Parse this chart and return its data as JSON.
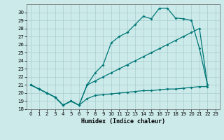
{
  "xlabel": "Humidex (Indice chaleur)",
  "bg_color": "#cceaea",
  "grid_color": "#aacccc",
  "line_color": "#007777",
  "xlim": [
    -0.5,
    23.5
  ],
  "ylim": [
    18,
    31
  ],
  "xticks": [
    0,
    1,
    2,
    3,
    4,
    5,
    6,
    7,
    8,
    9,
    10,
    11,
    12,
    13,
    14,
    15,
    16,
    17,
    18,
    19,
    20,
    21,
    22,
    23
  ],
  "yticks": [
    18,
    19,
    20,
    21,
    22,
    23,
    24,
    25,
    26,
    27,
    28,
    29,
    30
  ],
  "curve1_x": [
    0,
    1,
    2,
    3,
    4,
    5,
    6,
    7,
    8,
    9,
    10,
    11,
    12,
    13,
    14,
    15,
    16,
    17,
    18,
    19,
    20,
    21,
    22
  ],
  "curve1_y": [
    21.0,
    20.5,
    20.0,
    19.5,
    18.5,
    19.0,
    18.5,
    19.3,
    19.7,
    19.8,
    19.9,
    20.0,
    20.1,
    20.2,
    20.3,
    20.3,
    20.4,
    20.5,
    20.5,
    20.6,
    20.7,
    20.8,
    20.8
  ],
  "curve2_x": [
    0,
    1,
    2,
    3,
    4,
    5,
    6,
    7,
    8,
    9,
    10,
    11,
    12,
    13,
    14,
    15,
    16,
    17,
    18,
    19,
    20,
    21,
    22
  ],
  "curve2_y": [
    21.0,
    20.5,
    20.0,
    19.5,
    18.5,
    19.0,
    18.5,
    21.0,
    21.5,
    22.0,
    22.5,
    23.0,
    23.5,
    24.0,
    24.5,
    25.0,
    25.5,
    26.0,
    26.5,
    27.0,
    27.5,
    28.0,
    21.0
  ],
  "curve3_x": [
    0,
    1,
    2,
    3,
    4,
    5,
    6,
    7,
    8,
    9,
    10,
    11,
    12,
    13,
    14,
    15,
    16,
    17,
    18,
    19,
    20,
    21,
    22
  ],
  "curve3_y": [
    21.0,
    20.5,
    20.0,
    19.5,
    18.5,
    19.0,
    18.5,
    21.0,
    22.5,
    23.5,
    26.2,
    27.0,
    27.5,
    28.5,
    29.5,
    29.2,
    30.5,
    30.5,
    29.3,
    29.2,
    29.0,
    25.5,
    21.0
  ]
}
